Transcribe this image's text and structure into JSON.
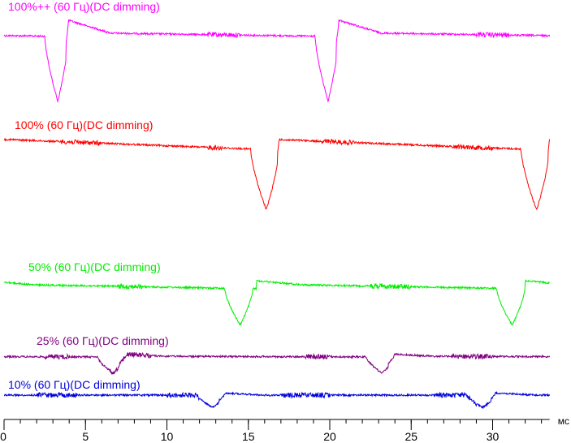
{
  "chart_data": {
    "type": "line",
    "xlabel": "мс",
    "ylabel": "",
    "xlim": [
      0,
      33.5
    ],
    "x_ticks": [
      0,
      5,
      10,
      15,
      20,
      25,
      30
    ],
    "x_tick_labels": [
      "0",
      "5",
      "10",
      "15",
      "20",
      "25",
      "30"
    ],
    "grid": false,
    "legend": "labels above each trace",
    "series": [
      {
        "name": "100%++ (60 Гц)(DC dimming)",
        "color": "#ff00ff",
        "period_ms": 16.5,
        "dips_ms": [
          3.3,
          19.9
        ],
        "dip_width_ms": 0.5,
        "recovery_ms": [
          3.8,
          20.4
        ],
        "noise_zones_ms": [
          [
            12.5,
            14.5
          ],
          [
            29.0,
            31.0
          ]
        ]
      },
      {
        "name": "100% (60 Гц)(DC dimming)",
        "color": "#ff0000",
        "period_ms": 16.5,
        "dips_ms": [
          16.1,
          32.7
        ],
        "dip_width_ms": 0.6,
        "recovery_ms": [
          16.8,
          33.4
        ],
        "noise_zones_ms": [
          [
            3.5,
            6.0
          ],
          [
            12.5,
            13.5
          ],
          [
            19.5,
            21.5
          ],
          [
            27.5,
            30.0
          ]
        ]
      },
      {
        "name": "50% (60 Гц)(DC dimming)",
        "color": "#00ee00",
        "period_ms": 16.5,
        "dips_ms": [
          14.5,
          31.2
        ],
        "dip_width_ms": 0.6,
        "recovery_ms": [
          15.5,
          32.0
        ],
        "noise_zones_ms": [
          [
            7.0,
            8.5
          ],
          [
            22.5,
            25.0
          ]
        ]
      },
      {
        "name": "25% (60 Гц)(DC dimming)",
        "color": "#800080",
        "period_ms": 16.5,
        "dips_ms": [
          6.7,
          23.2
        ],
        "dip_width_ms": 0.6,
        "recovery_ms": [
          7.0,
          23.6
        ],
        "noise_zones_ms": [
          [
            2.5,
            4.0
          ],
          [
            6.5,
            9.0
          ],
          [
            18.5,
            20.0
          ],
          [
            27.5,
            30.0
          ]
        ]
      },
      {
        "name": "10% (60 Гц)(DC dimming)",
        "color": "#0000dd",
        "period_ms": 16.5,
        "dips_ms": [
          12.8,
          29.4
        ],
        "dip_width_ms": 0.6,
        "recovery_ms": [
          13.2,
          29.9
        ],
        "noise_zones_ms": [
          [
            2.0,
            4.5
          ],
          [
            10.0,
            12.0
          ],
          [
            17.0,
            20.0
          ],
          [
            26.5,
            29.0
          ]
        ]
      }
    ]
  }
}
